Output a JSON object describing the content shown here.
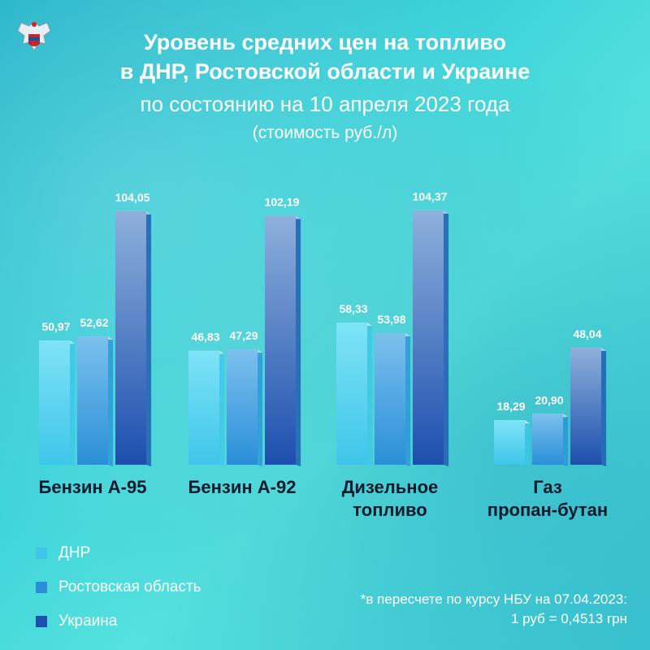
{
  "title": {
    "line1": "Уровень средних цен на топливо",
    "line2": "в ДНР, Ростовской области и Украине",
    "line3": "по состоянию на 10 апреля 2023 года",
    "line4": "(стоимость руб./л)"
  },
  "legend": [
    {
      "label": "ДНР",
      "color": "#3ec6ea"
    },
    {
      "label": "Ростовская область",
      "color": "#2a8fd8"
    },
    {
      "label": "Украина",
      "color": "#1c4fae"
    }
  ],
  "footnote": {
    "line1": "*в пересчете по курсу НБУ на 07.04.2023:",
    "line2": "1 руб = 0,4513 грн"
  },
  "chart_data": {
    "type": "bar",
    "categories": [
      [
        "Бензин А-95"
      ],
      [
        "Бензин А-92"
      ],
      [
        "Дизельное",
        "топливо"
      ],
      [
        "Газ",
        "пропан-бутан"
      ]
    ],
    "series": [
      {
        "name": "ДНР",
        "values": [
          50.97,
          46.83,
          58.33,
          18.29
        ],
        "labels": [
          "50,97",
          "46,83",
          "58,33",
          "18,29"
        ],
        "color": "#3ec6ea"
      },
      {
        "name": "Ростовская область",
        "values": [
          52.62,
          47.29,
          53.98,
          20.9
        ],
        "labels": [
          "52,62",
          "47,29",
          "53,98",
          "20,90"
        ],
        "color": "#2a8fd8"
      },
      {
        "name": "Украина",
        "values": [
          104.05,
          102.19,
          104.37,
          48.04
        ],
        "labels": [
          "104,05",
          "102,19",
          "104,37",
          "48,04"
        ],
        "color": "#1c4fae"
      }
    ],
    "ylim": [
      0,
      110
    ]
  }
}
